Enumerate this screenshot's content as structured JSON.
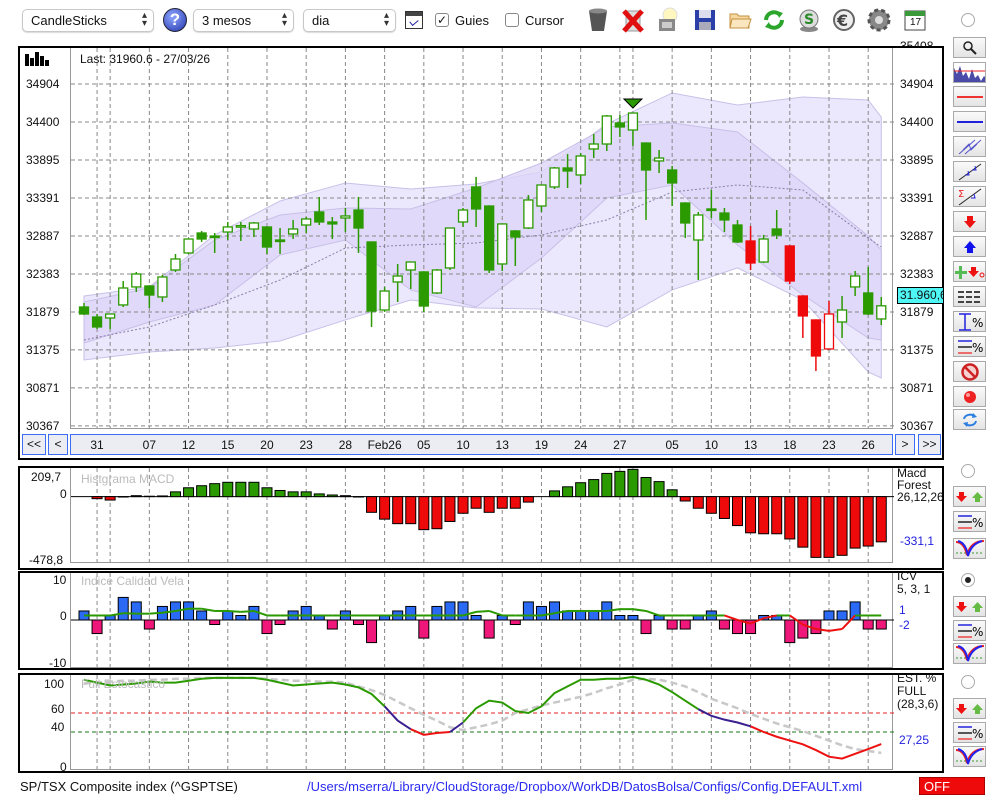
{
  "toolbar": {
    "chart_type": "CandleSticks",
    "period": "3 mesos",
    "interval": "dia",
    "guides_label": "Guies",
    "guides_checked": true,
    "cursor_label": "Cursor",
    "cursor_checked": false,
    "checkmark": "✓",
    "help": "?",
    "calendar_day": "17",
    "select_arrows": "⌃⌄"
  },
  "main": {
    "last_label": "Last: 31960.6 - 27/03/26",
    "price_tag": "31.960,6",
    "top_partial_tick": "35408",
    "nav": {
      "first": "<<",
      "prev": "<",
      "next": ">",
      "last": ">>"
    }
  },
  "macd_panel": {
    "title": "Histgrama MACD",
    "name1": "Macd",
    "name2": "Forest",
    "params": "26,12,26",
    "value": "-331,1",
    "ymax_label": "209,7",
    "zero_label": "0",
    "ymin_label": "-478,8"
  },
  "icv_panel": {
    "title": "Indice Calidad Vela",
    "name": "ICV",
    "params": "5, 3, 1",
    "value1": "1",
    "value2": "-2",
    "ymax_label": "10",
    "zero_label": "0",
    "ymin_label": "-10"
  },
  "stoch_panel": {
    "title": "Full Estocastico",
    "name1": "EST. %",
    "name2": "FULL",
    "params": "(28,3,6)",
    "value": "27,25",
    "labels": [
      "100",
      "60",
      "40",
      "0"
    ]
  },
  "status": {
    "instrument": "SP/TSX Composite index (^GSPTSE)",
    "config_path": "/Users/mserra/Library/CloudStorage/Dropbox/WorkDB/DatosBolsa/Configs/Config.DEFAULT.xml",
    "off_label": "OFF"
  },
  "colors": {
    "bull": "#2a9a00",
    "bear_signal": "#ee0a0a",
    "icv_pos": "#2b6af5",
    "icv_neg": "#f0177a",
    "band_outer": "#ebe7fc",
    "band_inner": "#ddd6f8",
    "price_tag": "#4ef6f6",
    "stoch_blue": "#3a1f8f",
    "off": "#ee0a0a"
  },
  "chart_data": [
    {
      "type": "candlestick",
      "title": "SP/TSX Composite index (^GSPTSE)",
      "ylim": [
        30339,
        35382
      ],
      "yticks": [
        34904,
        34400,
        33895,
        33391,
        32887,
        32383,
        31879,
        31375,
        30871,
        30367
      ],
      "x_labels": [
        {
          "i": 1,
          "label": "31"
        },
        {
          "i": 5,
          "label": "07"
        },
        {
          "i": 8,
          "label": "12"
        },
        {
          "i": 11,
          "label": "15"
        },
        {
          "i": 14,
          "label": "20"
        },
        {
          "i": 17,
          "label": "23"
        },
        {
          "i": 20,
          "label": "28"
        },
        {
          "i": 23,
          "label": "Feb26"
        },
        {
          "i": 26,
          "label": "05"
        },
        {
          "i": 29,
          "label": "10"
        },
        {
          "i": 32,
          "label": "13"
        },
        {
          "i": 35,
          "label": "19"
        },
        {
          "i": 38,
          "label": "24"
        },
        {
          "i": 41,
          "label": "27"
        },
        {
          "i": 45,
          "label": "05"
        },
        {
          "i": 48,
          "label": "10"
        },
        {
          "i": 51,
          "label": "13"
        },
        {
          "i": 54,
          "label": "18"
        },
        {
          "i": 57,
          "label": "23"
        },
        {
          "i": 60,
          "label": "26"
        }
      ],
      "extra_grid": [
        2,
        42
      ],
      "ohlc": [
        [
          31945,
          31998,
          31839,
          31852
        ],
        [
          31812,
          31852,
          31653,
          31680
        ],
        [
          31799,
          31852,
          31653,
          31852
        ],
        [
          31972,
          32290,
          31945,
          32197
        ],
        [
          32211,
          32410,
          32144,
          32383
        ],
        [
          32224,
          32235,
          31932,
          32104
        ],
        [
          32078,
          32370,
          32011,
          32343
        ],
        [
          32436,
          32648,
          32410,
          32582
        ],
        [
          32662,
          32847,
          32648,
          32847
        ],
        [
          32927,
          32954,
          32808,
          32847
        ],
        [
          32887,
          32927,
          32662,
          32880
        ],
        [
          32940,
          33073,
          32834,
          33007
        ],
        [
          33020,
          33073,
          32821,
          33025
        ],
        [
          32980,
          33073,
          32874,
          33060
        ],
        [
          33007,
          33015,
          32648,
          32741
        ],
        [
          32834,
          32993,
          32648,
          32830
        ],
        [
          32914,
          33100,
          32847,
          32980
        ],
        [
          33033,
          33139,
          32927,
          33113
        ],
        [
          33206,
          33405,
          33033,
          33073
        ],
        [
          33073,
          33139,
          32847,
          33047
        ],
        [
          33126,
          33259,
          32940,
          33153
        ],
        [
          33232,
          33405,
          32662,
          32993
        ],
        [
          32808,
          32815,
          31680,
          31892
        ],
        [
          31905,
          32211,
          31879,
          32157
        ],
        [
          32277,
          32516,
          32011,
          32356
        ],
        [
          32436,
          32542,
          32184,
          32542
        ],
        [
          32410,
          32420,
          31879,
          31958
        ],
        [
          32131,
          32449,
          32118,
          32436
        ],
        [
          32463,
          32993,
          32436,
          32993
        ],
        [
          33073,
          33259,
          33007,
          33232
        ],
        [
          33538,
          33670,
          33007,
          33246
        ],
        [
          33285,
          33295,
          32396,
          32436
        ],
        [
          32516,
          33047,
          32423,
          33047
        ],
        [
          32954,
          32965,
          32489,
          32874
        ],
        [
          32993,
          33431,
          32980,
          33365
        ],
        [
          33285,
          33564,
          33206,
          33564
        ],
        [
          33538,
          33803,
          33511,
          33790
        ],
        [
          33790,
          33975,
          33524,
          33750
        ],
        [
          33697,
          33989,
          33577,
          33949
        ],
        [
          34042,
          34241,
          33922,
          34108
        ],
        [
          34108,
          34493,
          34015,
          34480
        ],
        [
          34387,
          34493,
          34201,
          34334
        ],
        [
          34294,
          34519,
          34082,
          34519
        ],
        [
          34121,
          34130,
          33100,
          33763
        ],
        [
          33883,
          34028,
          33723,
          33922
        ],
        [
          33763,
          33816,
          33285,
          33591
        ],
        [
          33325,
          33335,
          32861,
          33060
        ],
        [
          32834,
          33206,
          32303,
          33166
        ],
        [
          33246,
          33498,
          33126,
          33240
        ],
        [
          33192,
          33259,
          32940,
          33100
        ],
        [
          33033,
          33100,
          32794,
          32808
        ],
        [
          32821,
          33020,
          32436,
          32529
        ],
        [
          32542,
          32901,
          32529,
          32847
        ],
        [
          32980,
          33232,
          32847,
          32901
        ],
        [
          32755,
          32765,
          32250,
          32290
        ],
        [
          32091,
          32100,
          31534,
          31826
        ],
        [
          31773,
          31780,
          31096,
          31295
        ],
        [
          31388,
          32025,
          31380,
          31852
        ],
        [
          31746,
          32091,
          31534,
          31905
        ],
        [
          32211,
          32423,
          32091,
          32356
        ],
        [
          32131,
          32476,
          31839,
          31852
        ],
        [
          31786,
          32078,
          31706,
          31960.6
        ]
      ],
      "red_candles": [
        51,
        54,
        55,
        56,
        57
      ],
      "signal_marker": {
        "i": 42,
        "type": "sell"
      },
      "bands": {
        "idx": [
          0,
          5,
          10,
          15,
          20,
          25,
          30,
          35,
          40,
          45,
          50,
          55,
          60,
          61
        ],
        "outer_upper": [
          32091,
          32211,
          32901,
          33352,
          33591,
          33511,
          33577,
          33737,
          34374,
          34785,
          34626,
          34732,
          34692,
          34466
        ],
        "inner_upper": [
          32011,
          32197,
          32834,
          33166,
          33259,
          33246,
          33524,
          33856,
          34334,
          34387,
          34267,
          33591,
          32887,
          32701
        ],
        "mid": [
          31507,
          31680,
          31972,
          32303,
          32728,
          32768,
          32794,
          32901,
          33100,
          33471,
          33564,
          33498,
          32861,
          32741
        ],
        "inner_lower": [
          31467,
          31746,
          31972,
          32635,
          32834,
          32171,
          31945,
          32595,
          33392,
          33564,
          32768,
          32104,
          31534,
          31507
        ],
        "outer_lower": [
          31242,
          31348,
          31401,
          31494,
          31773,
          32038,
          31932,
          31919,
          31680,
          32171,
          32463,
          32038,
          31083,
          31003
        ]
      }
    },
    {
      "type": "bar",
      "title": "Histgrama MACD",
      "ylim": [
        -478.8,
        209.7
      ],
      "values": [
        0,
        -15,
        -25,
        -3,
        7,
        3,
        5,
        35,
        65,
        80,
        95,
        105,
        105,
        105,
        65,
        45,
        35,
        35,
        20,
        12,
        7,
        -3,
        -115,
        -165,
        -198,
        -198,
        -242,
        -235,
        -182,
        -122,
        -85,
        -115,
        -85,
        -85,
        -40,
        0,
        42,
        72,
        102,
        125,
        170,
        185,
        200,
        140,
        110,
        50,
        -32,
        -85,
        -122,
        -160,
        -212,
        -265,
        -272,
        -272,
        -310,
        -370,
        -445,
        -445,
        -430,
        -377,
        -362,
        -331.1
      ]
    },
    {
      "type": "bar",
      "title": "Indice Calidad Vela",
      "ylim": [
        -10.4,
        10.4
      ],
      "values": [
        2,
        -3,
        1,
        5,
        4,
        -2,
        3,
        4,
        4,
        2,
        -1,
        2,
        1,
        3,
        -3,
        -1,
        2,
        3,
        1,
        -2,
        2,
        -1,
        -5,
        1,
        2,
        3,
        -4,
        3,
        4,
        4,
        1,
        -4,
        1,
        -1,
        4,
        3,
        4,
        2,
        2,
        2,
        4,
        1,
        1,
        -3,
        1,
        -2,
        -2,
        1,
        2,
        -2,
        -3,
        -3,
        1,
        1,
        -5,
        -4,
        -3,
        2,
        2,
        4,
        -2,
        -2
      ],
      "signal": [
        1,
        1,
        1,
        1.5,
        1.4,
        1.4,
        1.6,
        2,
        2.5,
        2.5,
        2,
        2,
        1.8,
        2,
        1,
        1,
        1,
        1,
        1,
        1,
        1,
        1,
        1,
        1,
        1,
        1,
        1,
        1,
        1,
        1,
        1.8,
        2,
        1,
        1,
        1,
        1,
        1.5,
        2,
        2,
        2,
        2,
        2.4,
        2.4,
        2,
        1,
        1,
        1,
        1,
        1,
        1,
        0,
        -0.8,
        0.4,
        1,
        1,
        -1,
        -2,
        -2.4,
        -2,
        1,
        1,
        1
      ]
    },
    {
      "type": "line",
      "title": "Full Estocastico",
      "ylim": [
        0,
        100
      ],
      "levels": [
        60,
        40
      ],
      "k": [
        95,
        92,
        89,
        90,
        91,
        93,
        92,
        92,
        94,
        96,
        97,
        97,
        97,
        97,
        95,
        92,
        89,
        90,
        91,
        92,
        90,
        87,
        80,
        67,
        52,
        43,
        37,
        39,
        40,
        50,
        65,
        73,
        71,
        62,
        60,
        67,
        81,
        88,
        95,
        95,
        96,
        96,
        98,
        95,
        90,
        82,
        73,
        64,
        57,
        53,
        50,
        46,
        40,
        35,
        31,
        27,
        21,
        14,
        12,
        17,
        22,
        27.25
      ],
      "d": [
        91,
        92,
        93,
        94,
        94,
        95,
        95,
        96,
        96,
        97,
        97,
        97,
        97,
        97,
        96,
        95,
        94,
        94,
        93,
        93,
        92,
        88,
        84,
        79,
        72,
        65,
        58,
        52,
        45,
        42,
        45,
        48,
        52,
        60,
        64,
        68,
        71,
        74,
        77,
        81,
        86,
        90,
        95,
        96,
        95,
        92,
        88,
        82,
        75,
        70,
        65,
        59,
        54,
        49,
        45,
        41,
        36,
        31,
        26,
        22,
        20,
        18
      ],
      "k_segments": [
        [
          0,
          23,
          "green"
        ],
        [
          23,
          25,
          "blue"
        ],
        [
          25,
          28,
          "red"
        ],
        [
          28,
          29,
          "blue"
        ],
        [
          29,
          47,
          "green"
        ],
        [
          47,
          51,
          "blue"
        ],
        [
          51,
          61,
          "red"
        ]
      ]
    }
  ]
}
